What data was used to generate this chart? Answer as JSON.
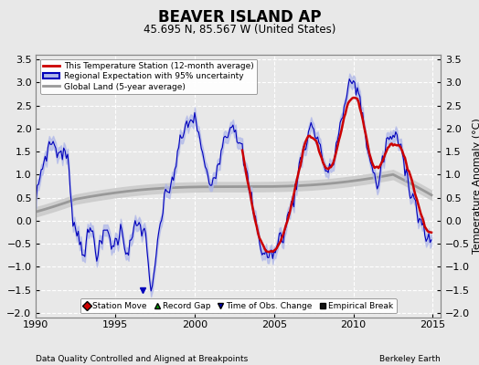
{
  "title": "BEAVER ISLAND AP",
  "subtitle": "45.695 N, 85.567 W (United States)",
  "xlabel_left": "Data Quality Controlled and Aligned at Breakpoints",
  "xlabel_right": "Berkeley Earth",
  "ylabel_right": "Temperature Anomaly (°C)",
  "xlim": [
    1990,
    2015.5
  ],
  "ylim": [
    -2.1,
    3.6
  ],
  "yticks": [
    -2,
    -1.5,
    -1,
    -0.5,
    0,
    0.5,
    1,
    1.5,
    2,
    2.5,
    3,
    3.5
  ],
  "xticks": [
    1990,
    1995,
    2000,
    2005,
    2010,
    2015
  ],
  "bg_color": "#e8e8e8",
  "plot_bg_color": "#e8e8e8",
  "grid_color": "#ffffff",
  "red_color": "#cc0000",
  "blue_color": "#0000bb",
  "blue_fill_color": "#b0b8e8",
  "gray_color": "#999999",
  "gray_fill_color": "#cccccc",
  "legend_marker_colors": {
    "station_move": "#cc0000",
    "record_gap": "#009900",
    "time_obs": "#0000bb",
    "empirical_break": "#111111"
  }
}
